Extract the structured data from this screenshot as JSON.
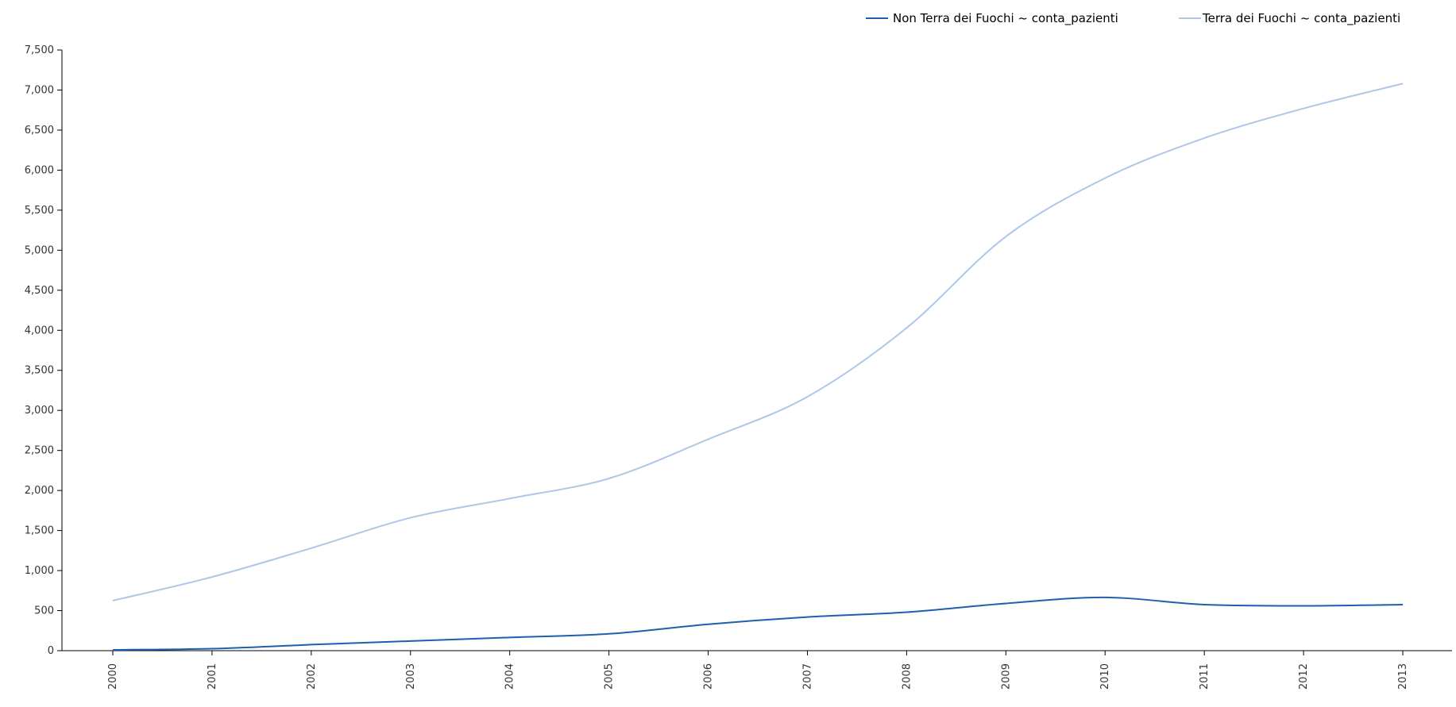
{
  "chart_data": {
    "type": "line",
    "x": [
      "2000",
      "2001",
      "2002",
      "2003",
      "2004",
      "2005",
      "2006",
      "2007",
      "2008",
      "2009",
      "2010",
      "2011",
      "2012",
      "2013"
    ],
    "ylim": [
      0,
      7500
    ],
    "yticks": [
      0,
      500,
      1000,
      1500,
      2000,
      2500,
      3000,
      3500,
      4000,
      4500,
      5000,
      5500,
      6000,
      6500,
      7000,
      7500
    ],
    "ytick_labels": [
      "0",
      "500",
      "1,000",
      "1,500",
      "2,000",
      "2,500",
      "3,000",
      "3,500",
      "4,000",
      "4,500",
      "5,000",
      "5,500",
      "6,000",
      "6,500",
      "7,000",
      "7,500"
    ],
    "grid": false,
    "legend_position": "top-right",
    "series": [
      {
        "name": "Non Terra dei Fuochi ~ conta_pazienti",
        "color": "#1f5fae",
        "values": [
          10,
          25,
          75,
          120,
          165,
          210,
          330,
          420,
          480,
          590,
          665,
          575,
          560,
          575
        ]
      },
      {
        "name": "Terra dei Fuochi ~ conta_pazienti",
        "color": "#aec7e8",
        "values": [
          625,
          920,
          1280,
          1660,
          1900,
          2150,
          2640,
          3170,
          4030,
          5170,
          5900,
          6400,
          6770,
          7080
        ]
      }
    ]
  }
}
